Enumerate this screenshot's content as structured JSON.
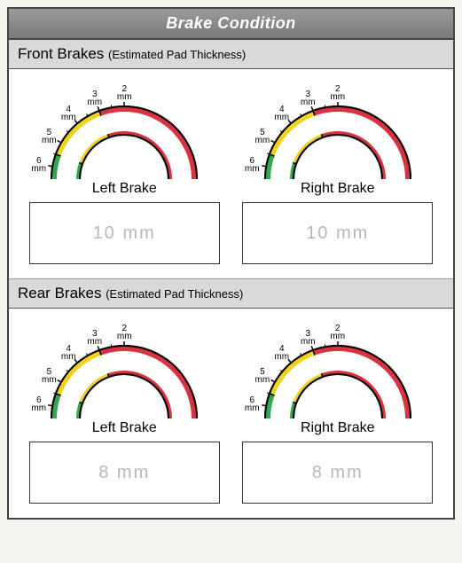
{
  "title": "Brake Condition",
  "sections": [
    {
      "heading": "Front Brakes",
      "sub": "(Estimated Pad Thickness)",
      "left": {
        "label": "Left Brake",
        "written_value": "10 mm"
      },
      "right": {
        "label": "Right Brake",
        "written_value": "10 mm"
      }
    },
    {
      "heading": "Rear Brakes",
      "sub": "(Estimated Pad Thickness)",
      "left": {
        "label": "Left Brake",
        "written_value": "8 mm"
      },
      "right": {
        "label": "Right Brake",
        "written_value": "8 mm"
      }
    }
  ],
  "gauge": {
    "type": "arc-gauge",
    "ticks": [
      {
        "value": "6",
        "unit": "mm"
      },
      {
        "value": "5",
        "unit": "mm"
      },
      {
        "value": "4",
        "unit": "mm"
      },
      {
        "value": "3",
        "unit": "mm"
      },
      {
        "value": "2",
        "unit": "mm"
      }
    ],
    "zones": [
      {
        "color": "#2fa84f",
        "from_deg": 210,
        "to_deg": 160
      },
      {
        "color": "#f2d21f",
        "from_deg": 160,
        "to_deg": 110
      },
      {
        "color": "#d9333f",
        "from_deg": 110,
        "to_deg": -30
      }
    ],
    "outline_color": "#000000",
    "background_color": "#ffffff",
    "tick_fontsize": 10
  },
  "colors": {
    "panel_border": "#444444",
    "title_bg_top": "#9a9a9a",
    "title_bg_bottom": "#7a7a7a",
    "title_text": "#ffffff",
    "section_header_bg": "#d9d9d9",
    "handwriting": "#b8b8b8"
  }
}
